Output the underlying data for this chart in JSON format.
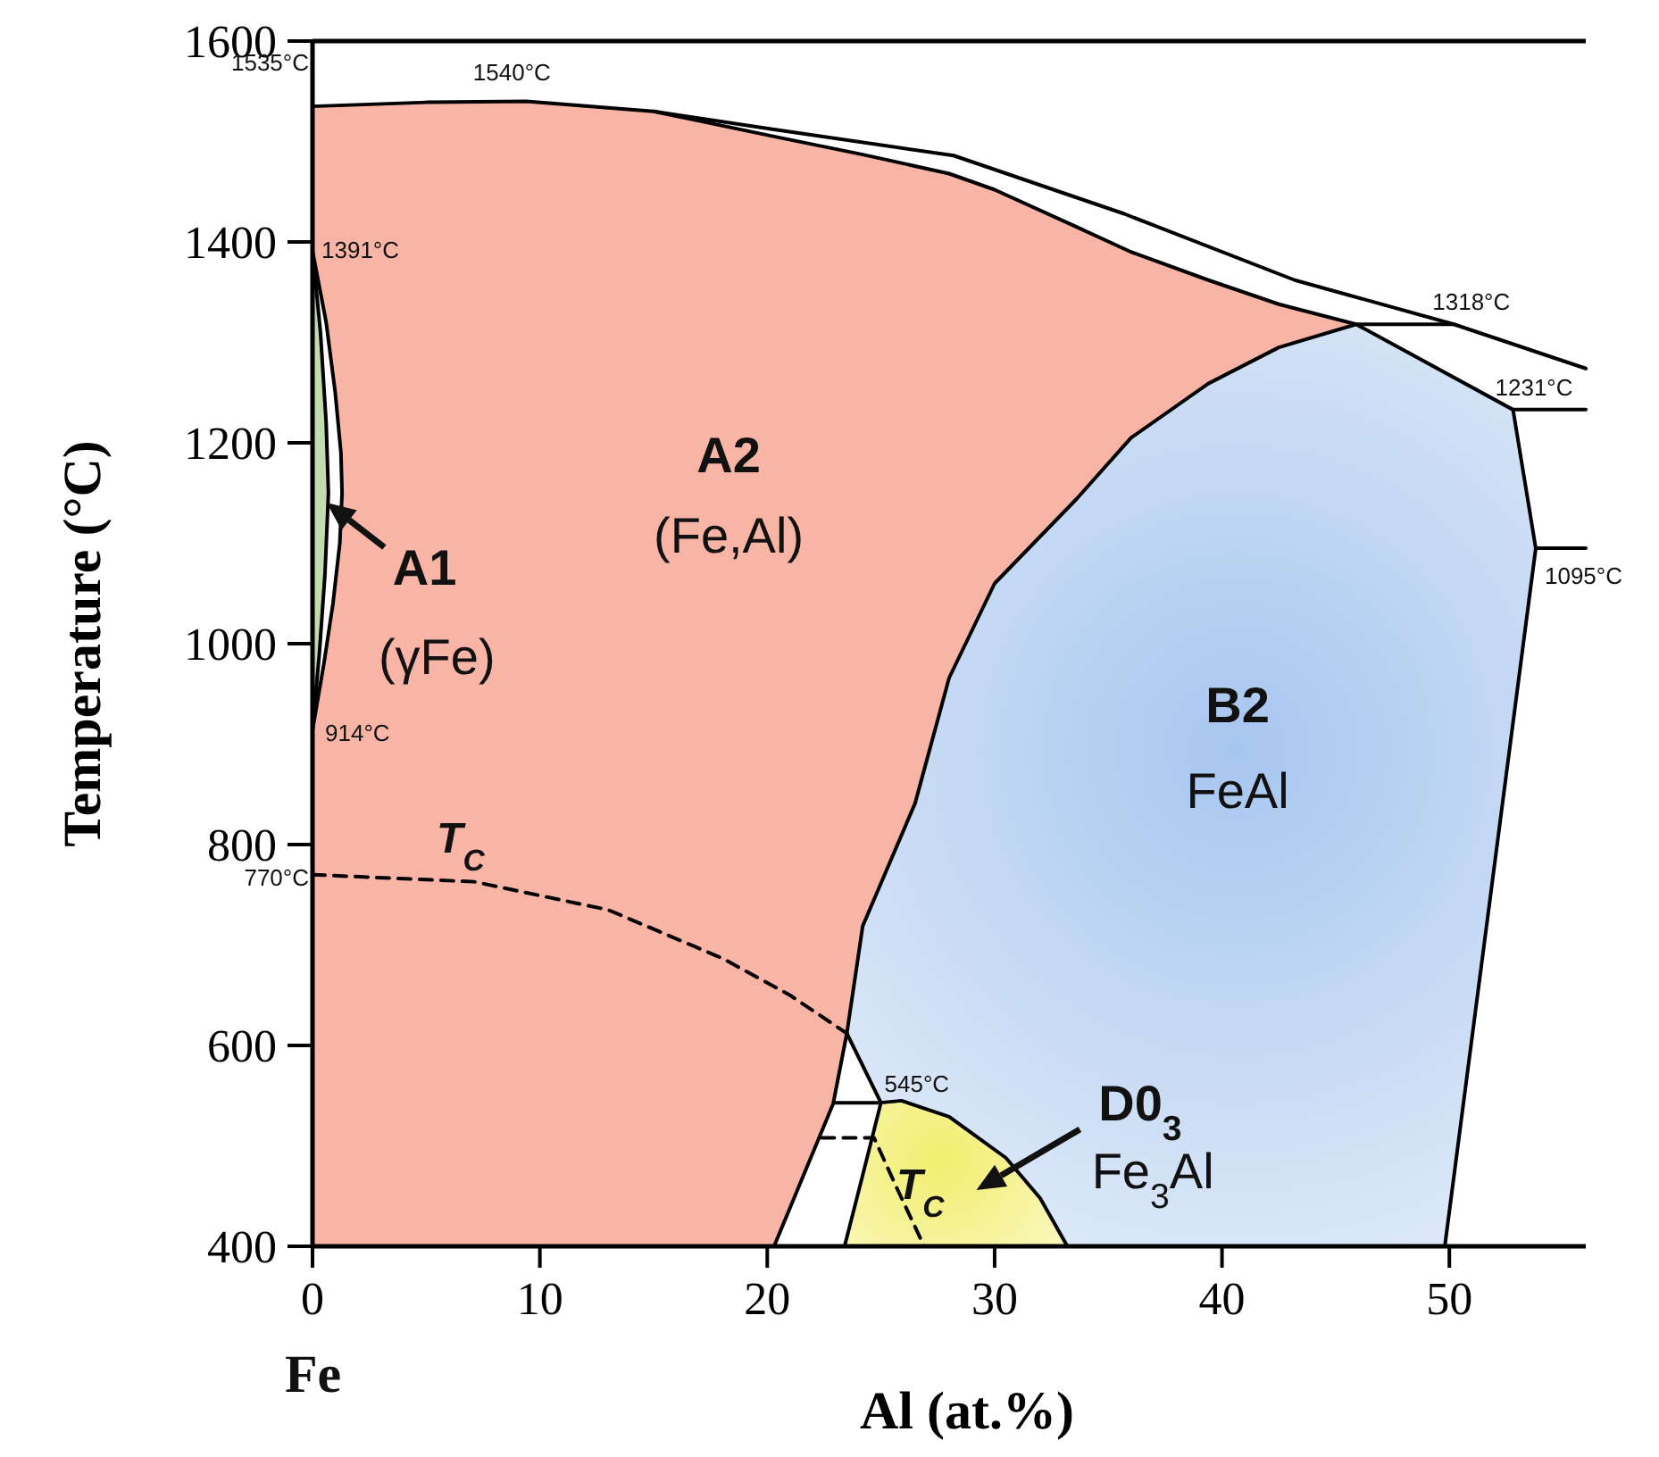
{
  "chart_data": {
    "type": "line",
    "xlabel": "Al (at.%)",
    "ylabel": "Temperature (°C)",
    "xlim": [
      0,
      56
    ],
    "xticks": [
      0,
      10,
      20,
      30,
      40,
      50
    ],
    "ylim": [
      400,
      1600
    ],
    "yticks": [
      400,
      600,
      800,
      1000,
      1200,
      1400,
      1600
    ],
    "grid": false,
    "series": [
      {
        "color": "#000000",
        "x": [
          15,
          20.3,
          28.2,
          35.7,
          43.2,
          50.2,
          56
        ],
        "values": [
          1530,
          1512,
          1486,
          1428,
          1362,
          1318,
          1274
        ]
      },
      {
        "type": "area",
        "color": "#f8b4a5",
        "x": [
          0,
          5,
          9.4,
          15,
          20.3,
          24.2,
          28,
          30,
          33.6,
          36,
          39.4,
          42.5,
          45.9
        ],
        "values": [
          1535,
          1539,
          1540,
          1530,
          1505,
          1487,
          1468,
          1452,
          1415,
          1390,
          1362,
          1338,
          1318
        ]
      },
      {
        "color": "#000000",
        "x": [
          20.3,
          22.9,
          23.5,
          24.2,
          26.5,
          28,
          30,
          33.6,
          36,
          39.4,
          42.5,
          45.9,
          52.8,
          53.8,
          49.8
        ],
        "values": [
          400,
          542,
          612,
          719,
          841,
          966,
          1060,
          1144,
          1205,
          1259,
          1295,
          1318,
          1233,
          1095,
          400
        ]
      },
      {
        "color": "#000000",
        "x": [
          45.9,
          50.2
        ],
        "values": [
          1318,
          1318
        ]
      },
      {
        "color": "#000000",
        "x": [
          52.8,
          56
        ],
        "values": [
          1233,
          1233
        ]
      },
      {
        "color": "#000000",
        "x": [
          53.8,
          56
        ],
        "values": [
          1095,
          1095
        ]
      },
      {
        "color": "#000000",
        "x": [
          23.5,
          25.0
        ],
        "values": [
          612,
          543
        ]
      },
      {
        "color": "#000000",
        "x": [
          23.4,
          24.2,
          25.0,
          25.9,
          28,
          30.5,
          32,
          33.2
        ],
        "values": [
          400,
          471,
          543,
          545,
          529,
          488,
          448,
          400
        ]
      },
      {
        "color": "#000000",
        "x": [
          23.0,
          25.0
        ],
        "values": [
          543,
          543
        ]
      },
      {
        "color": "#000000",
        "x": [
          0,
          0.6,
          1.0,
          1.25,
          1.3,
          1.2,
          0.9,
          0.5,
          0
        ],
        "values": [
          1391,
          1320,
          1250,
          1190,
          1150,
          1100,
          1040,
          980,
          914
        ]
      },
      {
        "color": "#000000",
        "x": [
          0,
          0.35,
          0.6,
          0.7,
          0.55,
          0.3,
          0
        ],
        "values": [
          1391,
          1310,
          1220,
          1150,
          1070,
          990,
          914
        ]
      },
      {
        "color": "#000000",
        "line_style": "dashed",
        "x": [
          0,
          7.1,
          13,
          18,
          21,
          23.5
        ],
        "values": [
          770,
          763,
          735,
          687,
          650,
          612
        ]
      },
      {
        "color": "#000000",
        "line_style": "dashed",
        "x": [
          22.4,
          24.7,
          25.7,
          26.9
        ],
        "values": [
          508,
          508,
          458,
          400
        ]
      }
    ],
    "annotations": [
      {
        "text": "1540°C",
        "x": 9.4,
        "y": 1540
      },
      {
        "text": "1535°C",
        "x": 0,
        "y": 1535
      },
      {
        "text": "1391°C",
        "x": 0,
        "y": 1391
      },
      {
        "text": "914°C",
        "x": 0,
        "y": 914
      },
      {
        "text": "770°C",
        "x": 0,
        "y": 770
      },
      {
        "text": "545°C",
        "x": 25.0,
        "y": 543
      },
      {
        "text": "1318°C",
        "x": 50.2,
        "y": 1318
      },
      {
        "text": "1231°C",
        "x": 52.8,
        "y": 1233
      },
      {
        "text": "1095°C",
        "x": 53.8,
        "y": 1095
      },
      "A2",
      "(Fe,Al)",
      "A1",
      "(γFe)",
      "B2",
      "FeAl",
      "D0$_{3}$",
      "Fe$_{3}$Al",
      "T$_{C}$",
      "T$_{C}$",
      "Fe"
    ]
  }
}
